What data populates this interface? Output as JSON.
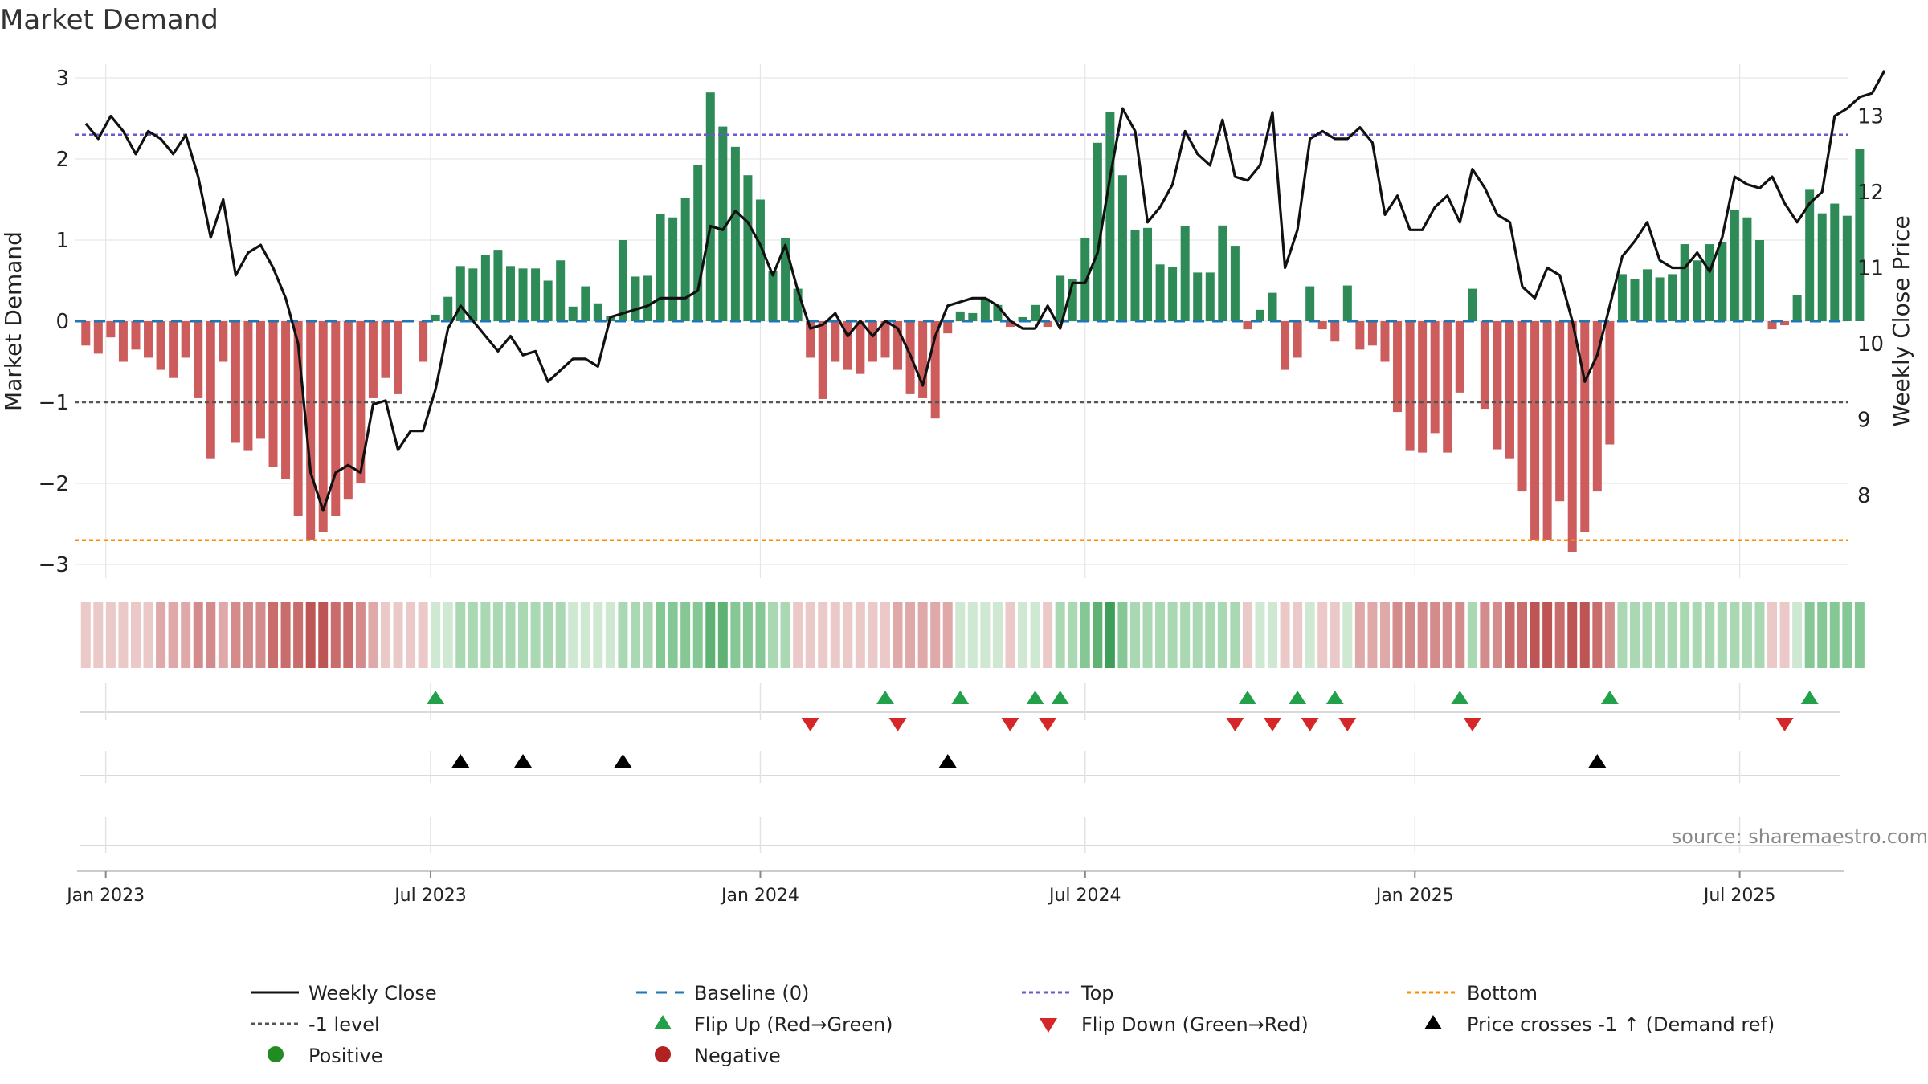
{
  "colors": {
    "pos_bar": "#2e8b57",
    "neg_bar": "#cd5c5c",
    "price": "#111111",
    "baseline": "#1f77b4",
    "top": "#6a5acd",
    "bottom": "#ff8c00",
    "minus1": "#555555",
    "flip_up": "#22a04a",
    "flip_down": "#d62728",
    "cross": "#000000",
    "pos_dot": "#228b22",
    "neg_dot": "#b22222",
    "grid": "#e6e6e6",
    "axis_text": "#222222"
  },
  "chart_data": {
    "type": "bar",
    "title": "Market Demand",
    "ylabel": "Market Demand",
    "y2label": "Weekly Close Price",
    "ylim": [
      -3.1,
      3.1
    ],
    "y_ticks": [
      3,
      2,
      1,
      0,
      -1,
      -2,
      -3
    ],
    "y_tick_labels": [
      "3",
      "2",
      "1",
      "0",
      "−1",
      "−2",
      "−3"
    ],
    "y2lim": [
      7.2,
      13.8
    ],
    "y2_ticks": [
      8,
      9,
      10,
      11,
      12,
      13
    ],
    "y2_tick_labels": [
      "8",
      "9",
      "10",
      "11",
      "12",
      "13"
    ],
    "top_level": 2.3,
    "bottom_level": -2.7,
    "minus1_level": -1,
    "x_tick_labels": [
      "Jan 2023",
      "Jul 2023",
      "Jan 2024",
      "Jul 2024",
      "Jan 2025",
      "Jul 2025"
    ],
    "x_tick_weeks": [
      1.6,
      27.6,
      54,
      80,
      106.4,
      132.4
    ],
    "demand": [
      -0.3,
      -0.4,
      -0.2,
      -0.5,
      -0.35,
      -0.45,
      -0.6,
      -0.7,
      -0.45,
      -0.95,
      -1.7,
      -0.5,
      -1.5,
      -1.6,
      -1.45,
      -1.8,
      -1.95,
      -2.4,
      -2.7,
      -2.6,
      -2.4,
      -2.2,
      -2.0,
      -0.95,
      -0.7,
      -0.9,
      0,
      -0.5,
      0.08,
      0.3,
      0.68,
      0.65,
      0.82,
      0.88,
      0.68,
      0.65,
      0.65,
      0.5,
      0.75,
      0.18,
      0.43,
      0.22,
      0.06,
      1.0,
      0.55,
      0.56,
      1.32,
      1.28,
      1.52,
      1.93,
      2.82,
      2.4,
      2.15,
      1.8,
      1.5,
      0.62,
      1.03,
      0.4,
      -0.45,
      -0.96,
      -0.5,
      -0.6,
      -0.65,
      -0.5,
      -0.45,
      -0.6,
      -0.9,
      -0.95,
      -1.2,
      -0.15,
      0.12,
      0.1,
      0.28,
      0.2,
      -0.07,
      0.05,
      0.2,
      -0.07,
      0.56,
      0.52,
      1.03,
      2.2,
      2.58,
      1.8,
      1.12,
      1.15,
      0.7,
      0.67,
      1.17,
      0.6,
      0.6,
      1.18,
      0.93,
      -0.1,
      0.14,
      0.35,
      -0.6,
      -0.45,
      0.43,
      -0.1,
      -0.25,
      0.44,
      -0.35,
      -0.3,
      -0.5,
      -1.12,
      -1.6,
      -1.62,
      -1.38,
      -1.62,
      -0.88,
      0.4,
      -1.08,
      -1.58,
      -1.7,
      -2.1,
      -2.7,
      -2.7,
      -2.22,
      -2.85,
      -2.6,
      -2.1,
      -1.52,
      0.58,
      0.52,
      0.64,
      0.54,
      0.58,
      0.95,
      0.75,
      0.95,
      0.98,
      1.37,
      1.28,
      1.0,
      -0.1,
      -0.05,
      0.32,
      1.62,
      1.33,
      1.45,
      1.3,
      2.12
    ],
    "price": [
      12.9,
      12.7,
      13.0,
      12.8,
      12.5,
      12.8,
      12.7,
      12.5,
      12.75,
      12.2,
      11.4,
      11.9,
      10.9,
      11.2,
      11.3,
      11.0,
      10.6,
      10.0,
      8.3,
      7.8,
      8.3,
      8.4,
      8.3,
      9.2,
      9.25,
      8.6,
      8.85,
      8.85,
      9.4,
      10.2,
      10.5,
      10.3,
      10.1,
      9.9,
      10.1,
      9.85,
      9.9,
      9.5,
      9.65,
      9.8,
      9.8,
      9.7,
      10.35,
      10.4,
      10.45,
      10.5,
      10.6,
      10.6,
      10.6,
      10.7,
      11.55,
      11.5,
      11.75,
      11.6,
      11.3,
      10.9,
      11.3,
      10.7,
      10.2,
      10.25,
      10.4,
      10.1,
      10.3,
      10.1,
      10.3,
      10.2,
      9.85,
      9.45,
      10.1,
      10.5,
      10.55,
      10.6,
      10.6,
      10.5,
      10.3,
      10.2,
      10.2,
      10.5,
      10.2,
      10.8,
      10.8,
      11.2,
      12.2,
      13.1,
      12.8,
      11.6,
      11.8,
      12.1,
      12.8,
      12.5,
      12.35,
      12.95,
      12.2,
      12.15,
      12.35,
      13.05,
      11.0,
      11.5,
      12.7,
      12.8,
      12.7,
      12.7,
      12.85,
      12.65,
      11.7,
      11.95,
      11.5,
      11.5,
      11.8,
      11.95,
      11.6,
      12.3,
      12.05,
      11.7,
      11.6,
      10.75,
      10.6,
      11.0,
      10.9,
      10.3,
      9.5,
      9.85,
      10.5,
      11.15,
      11.35,
      11.6,
      11.1,
      11.0,
      11.0,
      11.2,
      10.95,
      11.4,
      12.2,
      12.1,
      12.05,
      12.2,
      11.85,
      11.6,
      11.85,
      12.0,
      13.0,
      13.1,
      13.25,
      13.3,
      13.6
    ],
    "heat": [
      -1,
      -1,
      -1,
      -1,
      -1,
      -1,
      -2,
      -2,
      -2,
      -3,
      -3,
      -2,
      -3,
      -3,
      -3,
      -4,
      -4,
      -4,
      -5,
      -5,
      -4,
      -4,
      -3,
      -2,
      -1,
      -1,
      -1,
      -1,
      1,
      1,
      2,
      2,
      2,
      2,
      2,
      2,
      2,
      2,
      2,
      1,
      1,
      1,
      1,
      2,
      2,
      2,
      3,
      3,
      3,
      3,
      4,
      4,
      3,
      3,
      3,
      2,
      2,
      -1,
      -1,
      -1,
      -1,
      -1,
      -1,
      -1,
      -1,
      -2,
      -2,
      -2,
      -2,
      -2,
      1,
      1,
      1,
      1,
      -1,
      1,
      1,
      -1,
      2,
      2,
      3,
      4,
      5,
      3,
      2,
      2,
      2,
      2,
      2,
      2,
      2,
      2,
      2,
      -1,
      1,
      1,
      -1,
      -1,
      1,
      -1,
      -1,
      1,
      -2,
      -2,
      -2,
      -3,
      -3,
      -3,
      -3,
      -3,
      -3,
      2,
      -3,
      -3,
      -4,
      -4,
      -5,
      -5,
      -4,
      -5,
      -5,
      -4,
      -3,
      2,
      2,
      2,
      2,
      2,
      2,
      2,
      2,
      2,
      2,
      2,
      2,
      -1,
      -1,
      1,
      3,
      3,
      3,
      3,
      3
    ],
    "flip_up_weeks": [
      28,
      64,
      70,
      76,
      78,
      93,
      97,
      100,
      110,
      122,
      138
    ],
    "flip_down_weeks": [
      58,
      65,
      74,
      77,
      92,
      95,
      98,
      101,
      111,
      136
    ],
    "cross_weeks": [
      30,
      35,
      43,
      69,
      121
    ]
  },
  "source_label": "source: sharemaestro.com",
  "legend": [
    {
      "key": "weekly_close",
      "label": "Weekly Close"
    },
    {
      "key": "baseline",
      "label": "Baseline (0)"
    },
    {
      "key": "top",
      "label": "Top"
    },
    {
      "key": "bottom",
      "label": "Bottom"
    },
    {
      "key": "minus1",
      "label": "-1 level"
    },
    {
      "key": "flip_up",
      "label": "Flip Up (Red→Green)"
    },
    {
      "key": "flip_down",
      "label": "Flip Down (Green→Red)"
    },
    {
      "key": "cross",
      "label": "Price crosses -1 ↑ (Demand ref)"
    },
    {
      "key": "positive",
      "label": "Positive"
    },
    {
      "key": "negative",
      "label": "Negative"
    }
  ]
}
